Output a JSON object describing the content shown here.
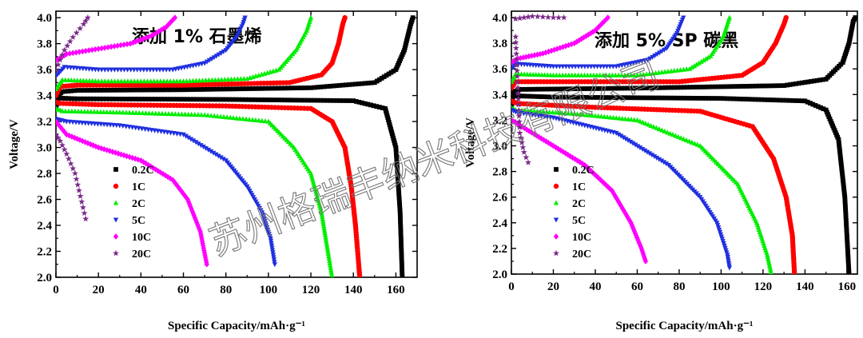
{
  "colors": {
    "0.2C": "#000000",
    "1C": "#ff0000",
    "2C": "#00ee00",
    "5C": "#1f2fe0",
    "10C": "#ff00ff",
    "20C": "#7a2a8a"
  },
  "watermark": "苏州格瑞丰纳米科技有限公司",
  "chart_data": [
    {
      "type": "scatter",
      "title": "添加 1% 石墨烯",
      "xlabel": "Specific Capacity/mAh·g⁻¹",
      "ylabel": "Voltage/V",
      "xlim": [
        0,
        170
      ],
      "ylim": [
        2.0,
        4.05
      ],
      "xticks": [
        "0",
        "20",
        "40",
        "60",
        "80",
        "100",
        "120",
        "140",
        "160"
      ],
      "yticks": [
        "2.0",
        "2.2",
        "2.4",
        "2.6",
        "2.8",
        "3.0",
        "3.2",
        "3.4",
        "3.6",
        "3.8",
        "4.0"
      ],
      "legend": [
        "0.2C",
        "1C",
        "2C",
        "5C",
        "10C",
        "20C"
      ],
      "legend_position": "lower-left",
      "series": [
        {
          "name": "0.2C",
          "charge": [
            [
              0,
              3.3
            ],
            [
              1,
              3.4
            ],
            [
              3,
              3.43
            ],
            [
              10,
              3.44
            ],
            [
              60,
              3.445
            ],
            [
              120,
              3.46
            ],
            [
              150,
              3.5
            ],
            [
              160,
              3.6
            ],
            [
              164,
              3.75
            ],
            [
              167,
              3.95
            ],
            [
              168,
              4.0
            ]
          ],
          "discharge": [
            [
              0,
              3.4
            ],
            [
              2,
              3.38
            ],
            [
              10,
              3.375
            ],
            [
              80,
              3.37
            ],
            [
              140,
              3.36
            ],
            [
              155,
              3.3
            ],
            [
              160,
              3.0
            ],
            [
              162,
              2.5
            ],
            [
              163,
              2.0
            ]
          ]
        },
        {
          "name": "1C",
          "charge": [
            [
              0,
              3.4
            ],
            [
              2,
              3.47
            ],
            [
              10,
              3.48
            ],
            [
              60,
              3.48
            ],
            [
              110,
              3.5
            ],
            [
              125,
              3.56
            ],
            [
              130,
              3.65
            ],
            [
              133,
              3.8
            ],
            [
              135,
              3.95
            ],
            [
              136,
              4.0
            ]
          ],
          "discharge": [
            [
              0,
              3.35
            ],
            [
              2,
              3.34
            ],
            [
              20,
              3.33
            ],
            [
              80,
              3.32
            ],
            [
              120,
              3.3
            ],
            [
              130,
              3.2
            ],
            [
              136,
              3.0
            ],
            [
              139,
              2.7
            ],
            [
              141,
              2.4
            ],
            [
              142,
              2.2
            ],
            [
              143,
              2.0
            ]
          ]
        },
        {
          "name": "2C",
          "charge": [
            [
              0,
              3.45
            ],
            [
              3,
              3.52
            ],
            [
              20,
              3.51
            ],
            [
              60,
              3.51
            ],
            [
              90,
              3.53
            ],
            [
              105,
              3.6
            ],
            [
              113,
              3.75
            ],
            [
              118,
              3.9
            ],
            [
              120,
              4.0
            ]
          ],
          "discharge": [
            [
              0,
              3.3
            ],
            [
              3,
              3.28
            ],
            [
              30,
              3.27
            ],
            [
              70,
              3.25
            ],
            [
              100,
              3.2
            ],
            [
              112,
              3.0
            ],
            [
              120,
              2.8
            ],
            [
              125,
              2.5
            ],
            [
              128,
              2.2
            ],
            [
              130,
              2.0
            ]
          ]
        },
        {
          "name": "5C",
          "charge": [
            [
              0,
              3.55
            ],
            [
              4,
              3.62
            ],
            [
              20,
              3.6
            ],
            [
              55,
              3.6
            ],
            [
              70,
              3.65
            ],
            [
              80,
              3.75
            ],
            [
              85,
              3.85
            ],
            [
              88,
              3.95
            ],
            [
              89,
              4.0
            ]
          ],
          "discharge": [
            [
              0,
              3.22
            ],
            [
              5,
              3.2
            ],
            [
              30,
              3.17
            ],
            [
              60,
              3.1
            ],
            [
              80,
              2.9
            ],
            [
              90,
              2.7
            ],
            [
              97,
              2.5
            ],
            [
              101,
              2.3
            ],
            [
              103,
              2.1
            ]
          ]
        },
        {
          "name": "10C",
          "charge": [
            [
              0,
              3.67
            ],
            [
              5,
              3.72
            ],
            [
              20,
              3.76
            ],
            [
              35,
              3.8
            ],
            [
              45,
              3.86
            ],
            [
              52,
              3.93
            ],
            [
              56,
              4.0
            ]
          ],
          "discharge": [
            [
              0,
              3.2
            ],
            [
              5,
              3.1
            ],
            [
              20,
              3.0
            ],
            [
              40,
              2.9
            ],
            [
              55,
              2.75
            ],
            [
              62,
              2.6
            ],
            [
              68,
              2.35
            ],
            [
              71,
              2.1
            ]
          ]
        },
        {
          "name": "20C",
          "charge": [
            [
              0,
              3.6
            ],
            [
              4,
              3.75
            ],
            [
              8,
              3.85
            ],
            [
              13,
              3.95
            ],
            [
              15,
              4.0
            ]
          ],
          "discharge": [
            [
              0,
              3.1
            ],
            [
              2,
              3.05
            ],
            [
              5,
              2.95
            ],
            [
              9,
              2.8
            ],
            [
              14,
              2.45
            ]
          ]
        }
      ]
    },
    {
      "type": "scatter",
      "title": "添加 5% SP 碳黑",
      "xlabel": "Specific Capacity/mAh·g⁻¹",
      "ylabel": "Voltage/V",
      "xlim": [
        0,
        165
      ],
      "ylim": [
        2.0,
        4.05
      ],
      "xticks": [
        "0",
        "20",
        "40",
        "60",
        "80",
        "100",
        "120",
        "140",
        "160"
      ],
      "yticks": [
        "2.0",
        "2.2",
        "2.4",
        "2.6",
        "2.8",
        "3.0",
        "3.2",
        "3.4",
        "3.6",
        "3.8",
        "4.0"
      ],
      "legend": [
        "0.2C",
        "1C",
        "2C",
        "5C",
        "10C",
        "20C"
      ],
      "legend_position": "lower-left",
      "series": [
        {
          "name": "0.2C",
          "charge": [
            [
              0,
              3.3
            ],
            [
              1,
              3.42
            ],
            [
              4,
              3.44
            ],
            [
              60,
              3.45
            ],
            [
              130,
              3.47
            ],
            [
              150,
              3.52
            ],
            [
              158,
              3.65
            ],
            [
              161,
              3.8
            ],
            [
              163,
              3.97
            ],
            [
              164,
              4.0
            ]
          ],
          "discharge": [
            [
              0,
              3.4
            ],
            [
              2,
              3.39
            ],
            [
              20,
              3.38
            ],
            [
              100,
              3.37
            ],
            [
              140,
              3.35
            ],
            [
              150,
              3.28
            ],
            [
              156,
              3.05
            ],
            [
              159,
              2.6
            ],
            [
              161,
              2.0
            ]
          ]
        },
        {
          "name": "1C",
          "charge": [
            [
              0,
              3.45
            ],
            [
              2,
              3.5
            ],
            [
              20,
              3.5
            ],
            [
              80,
              3.5
            ],
            [
              110,
              3.55
            ],
            [
              120,
              3.65
            ],
            [
              126,
              3.8
            ],
            [
              130,
              3.95
            ],
            [
              131,
              4.0
            ]
          ],
          "discharge": [
            [
              0,
              3.35
            ],
            [
              3,
              3.33
            ],
            [
              40,
              3.3
            ],
            [
              90,
              3.27
            ],
            [
              115,
              3.15
            ],
            [
              125,
              2.9
            ],
            [
              131,
              2.6
            ],
            [
              134,
              2.3
            ],
            [
              135,
              2.0
            ]
          ]
        },
        {
          "name": "2C",
          "charge": [
            [
              0,
              3.5
            ],
            [
              2,
              3.56
            ],
            [
              20,
              3.55
            ],
            [
              60,
              3.55
            ],
            [
              85,
              3.6
            ],
            [
              95,
              3.7
            ],
            [
              101,
              3.85
            ],
            [
              104,
              4.0
            ]
          ],
          "discharge": [
            [
              0,
              3.3
            ],
            [
              2,
              3.28
            ],
            [
              30,
              3.25
            ],
            [
              60,
              3.2
            ],
            [
              90,
              3.0
            ],
            [
              108,
              2.7
            ],
            [
              117,
              2.4
            ],
            [
              122,
              2.15
            ],
            [
              124,
              2.0
            ]
          ]
        },
        {
          "name": "5C",
          "charge": [
            [
              0,
              3.6
            ],
            [
              2,
              3.64
            ],
            [
              20,
              3.62
            ],
            [
              50,
              3.62
            ],
            [
              65,
              3.67
            ],
            [
              74,
              3.76
            ],
            [
              79,
              3.88
            ],
            [
              82,
              4.0
            ]
          ],
          "discharge": [
            [
              0,
              3.28
            ],
            [
              3,
              3.26
            ],
            [
              20,
              3.22
            ],
            [
              50,
              3.1
            ],
            [
              75,
              2.85
            ],
            [
              90,
              2.6
            ],
            [
              98,
              2.4
            ],
            [
              103,
              2.15
            ],
            [
              104,
              2.05
            ]
          ]
        },
        {
          "name": "10C",
          "charge": [
            [
              0,
              3.65
            ],
            [
              3,
              3.68
            ],
            [
              15,
              3.72
            ],
            [
              30,
              3.8
            ],
            [
              40,
              3.9
            ],
            [
              46,
              4.0
            ]
          ],
          "discharge": [
            [
              0,
              3.2
            ],
            [
              5,
              3.15
            ],
            [
              20,
              3.0
            ],
            [
              35,
              2.85
            ],
            [
              48,
              2.65
            ],
            [
              57,
              2.4
            ],
            [
              62,
              2.2
            ],
            [
              64,
              2.1
            ]
          ]
        },
        {
          "name": "20C",
          "charge": [
            [
              2,
              3.99
            ],
            [
              6,
              4.0
            ],
            [
              10,
              4.01
            ],
            [
              20,
              4.0
            ],
            [
              25,
              4.0
            ]
          ],
          "discharge": [
            [
              2,
              3.85
            ],
            [
              4,
              3.1
            ],
            [
              6,
              2.95
            ],
            [
              8,
              2.87
            ]
          ]
        }
      ]
    }
  ]
}
